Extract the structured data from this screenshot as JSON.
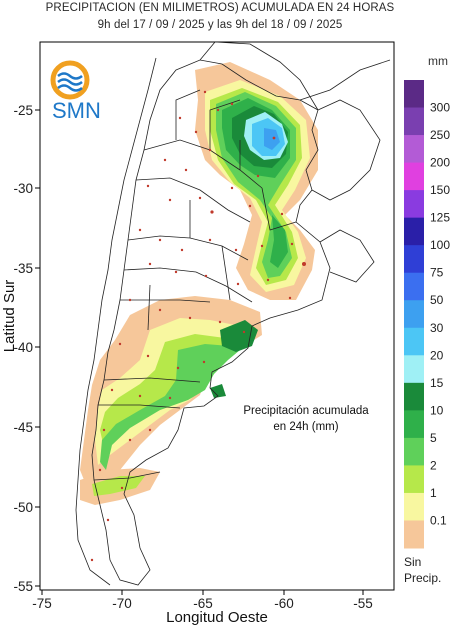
{
  "title_line1": "PRECIPITACION (EN MILIMETROS) ACUMULADA EN 24 HORAS",
  "title_line2": "9h del 17 / 09 / 2025  y las 9h del 18 / 09 / 2025",
  "unit": "mm",
  "logo_text": "SMN",
  "annotation_line1": "Precipitación acumulada",
  "annotation_line2": "en 24h (mm)",
  "axes": {
    "xlabel": "Longitud Oeste",
    "ylabel": "Latitud Sur",
    "x_ticks": [
      "-75",
      "-70",
      "-65",
      "-60",
      "-55"
    ],
    "y_ticks": [
      "-25",
      "-30",
      "-35",
      "-40",
      "-45",
      "-50",
      "-55"
    ]
  },
  "legend": {
    "items": [
      {
        "label": "300",
        "color": "#5b2a86"
      },
      {
        "label": "250",
        "color": "#7a3fb0"
      },
      {
        "label": "200",
        "color": "#b35bd6"
      },
      {
        "label": "150",
        "color": "#e040e0"
      },
      {
        "label": "125",
        "color": "#8a3be0"
      },
      {
        "label": "100",
        "color": "#2a1fa8"
      },
      {
        "label": "75",
        "color": "#2f3fd6"
      },
      {
        "label": "50",
        "color": "#3b6ff0"
      },
      {
        "label": "30",
        "color": "#3da0f0"
      },
      {
        "label": "20",
        "color": "#4cc6f5"
      },
      {
        "label": "15",
        "color": "#9ff0f5"
      },
      {
        "label": "10",
        "color": "#1a8a3a"
      },
      {
        "label": "5",
        "color": "#2fb04a"
      },
      {
        "label": "2",
        "color": "#5fd05a"
      },
      {
        "label": "1",
        "color": "#b6e84a"
      },
      {
        "label": "0.1",
        "color": "#f8f7a0"
      },
      {
        "label": "",
        "color": "#f6c79a"
      }
    ],
    "none_label_1": "Sin",
    "none_label_2": "Precip."
  }
}
